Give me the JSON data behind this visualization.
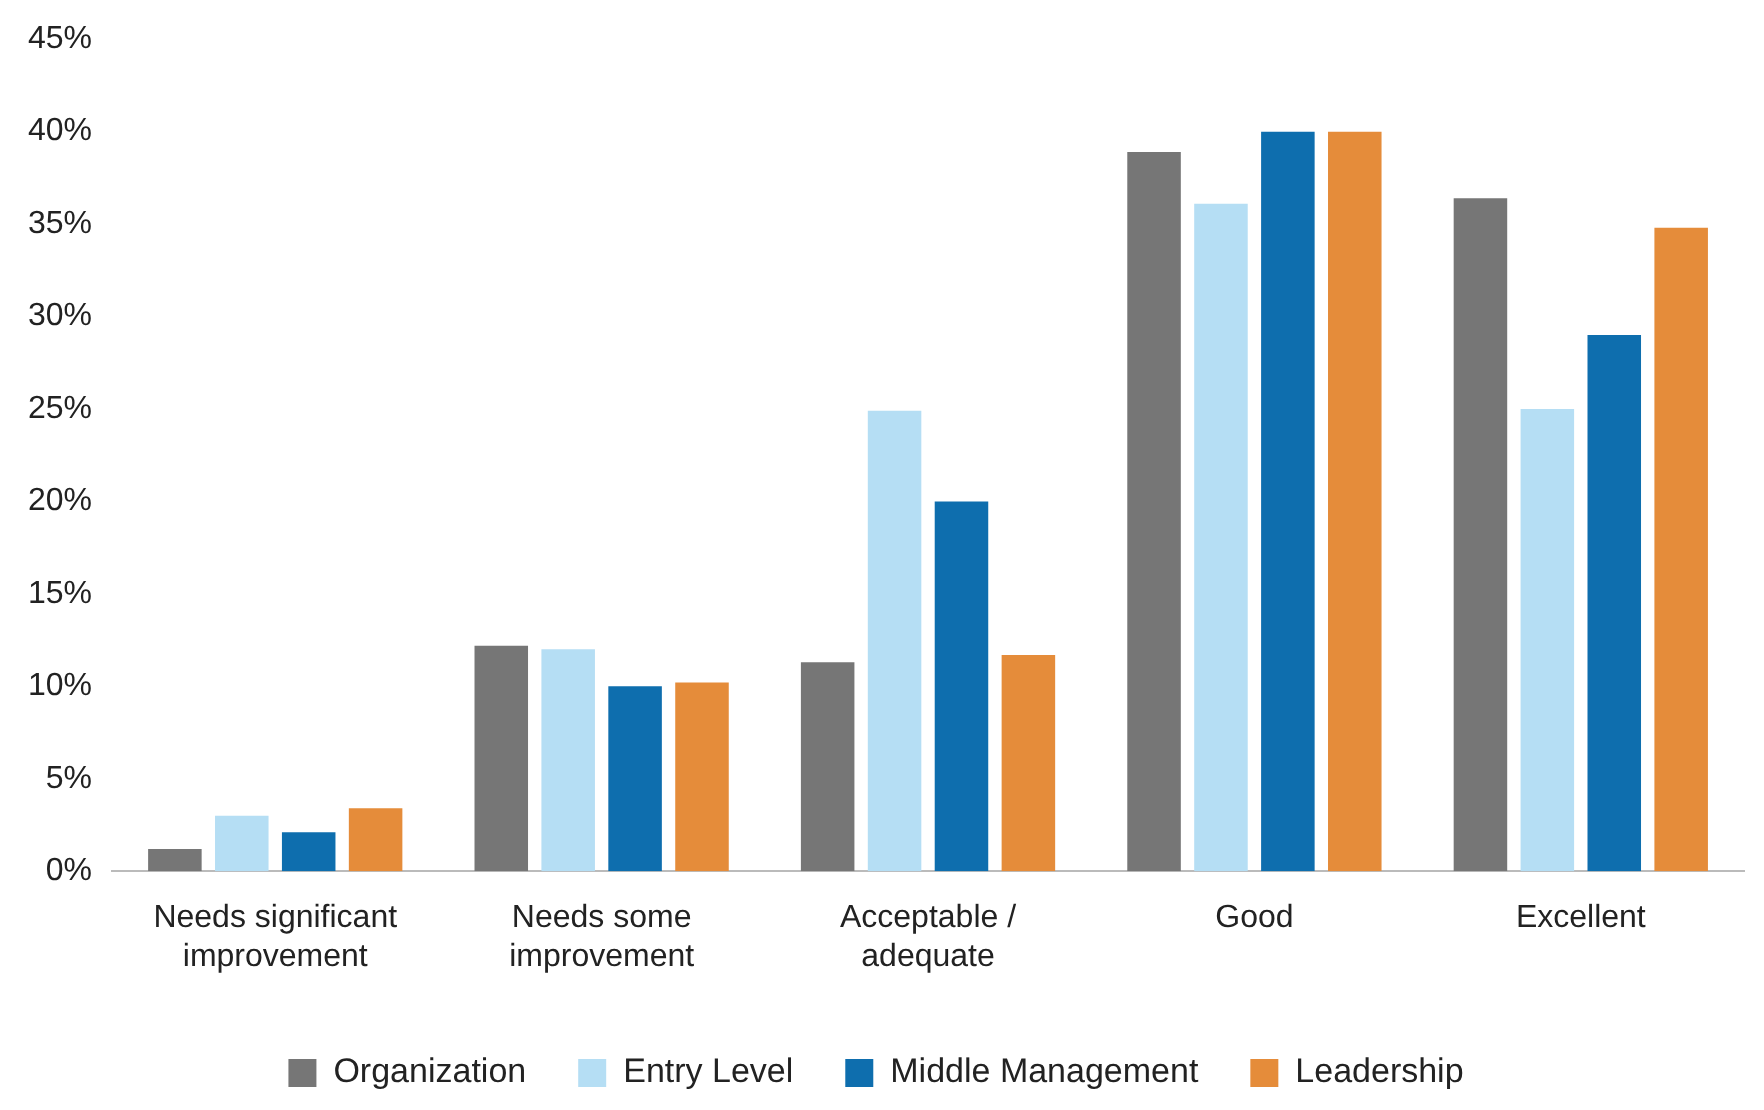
{
  "chart_data": {
    "type": "bar",
    "categories": [
      [
        "Needs significant",
        "improvement"
      ],
      [
        "Needs some",
        "improvement"
      ],
      [
        "Acceptable /",
        "adequate"
      ],
      "Good",
      "Excellent"
    ],
    "series": [
      {
        "name": "Organization",
        "color": "#767676",
        "values": [
          1.2,
          12.2,
          11.3,
          38.9,
          36.4
        ]
      },
      {
        "name": "Entry Level",
        "color": "#b5def4",
        "values": [
          3.0,
          12.0,
          24.9,
          36.1,
          25.0
        ]
      },
      {
        "name": "Middle Management",
        "color": "#0e6eae",
        "values": [
          2.1,
          10.0,
          20.0,
          40.0,
          29.0
        ]
      },
      {
        "name": "Leadership",
        "color": "#e58c3a",
        "values": [
          3.4,
          10.2,
          11.7,
          40.0,
          34.8
        ]
      }
    ],
    "ylim": [
      0,
      45
    ],
    "yticks": [
      {
        "value": 0,
        "label": "0%"
      },
      {
        "value": 5,
        "label": "5%"
      },
      {
        "value": 10,
        "label": "10%"
      },
      {
        "value": 15,
        "label": "15%"
      },
      {
        "value": 20,
        "label": "20%"
      },
      {
        "value": 25,
        "label": "25%"
      },
      {
        "value": 30,
        "label": "30%"
      },
      {
        "value": 35,
        "label": "35%"
      },
      {
        "value": 40,
        "label": "40%"
      },
      {
        "value": 45,
        "label": "45%"
      }
    ],
    "grid": false,
    "legend": "bottom"
  }
}
